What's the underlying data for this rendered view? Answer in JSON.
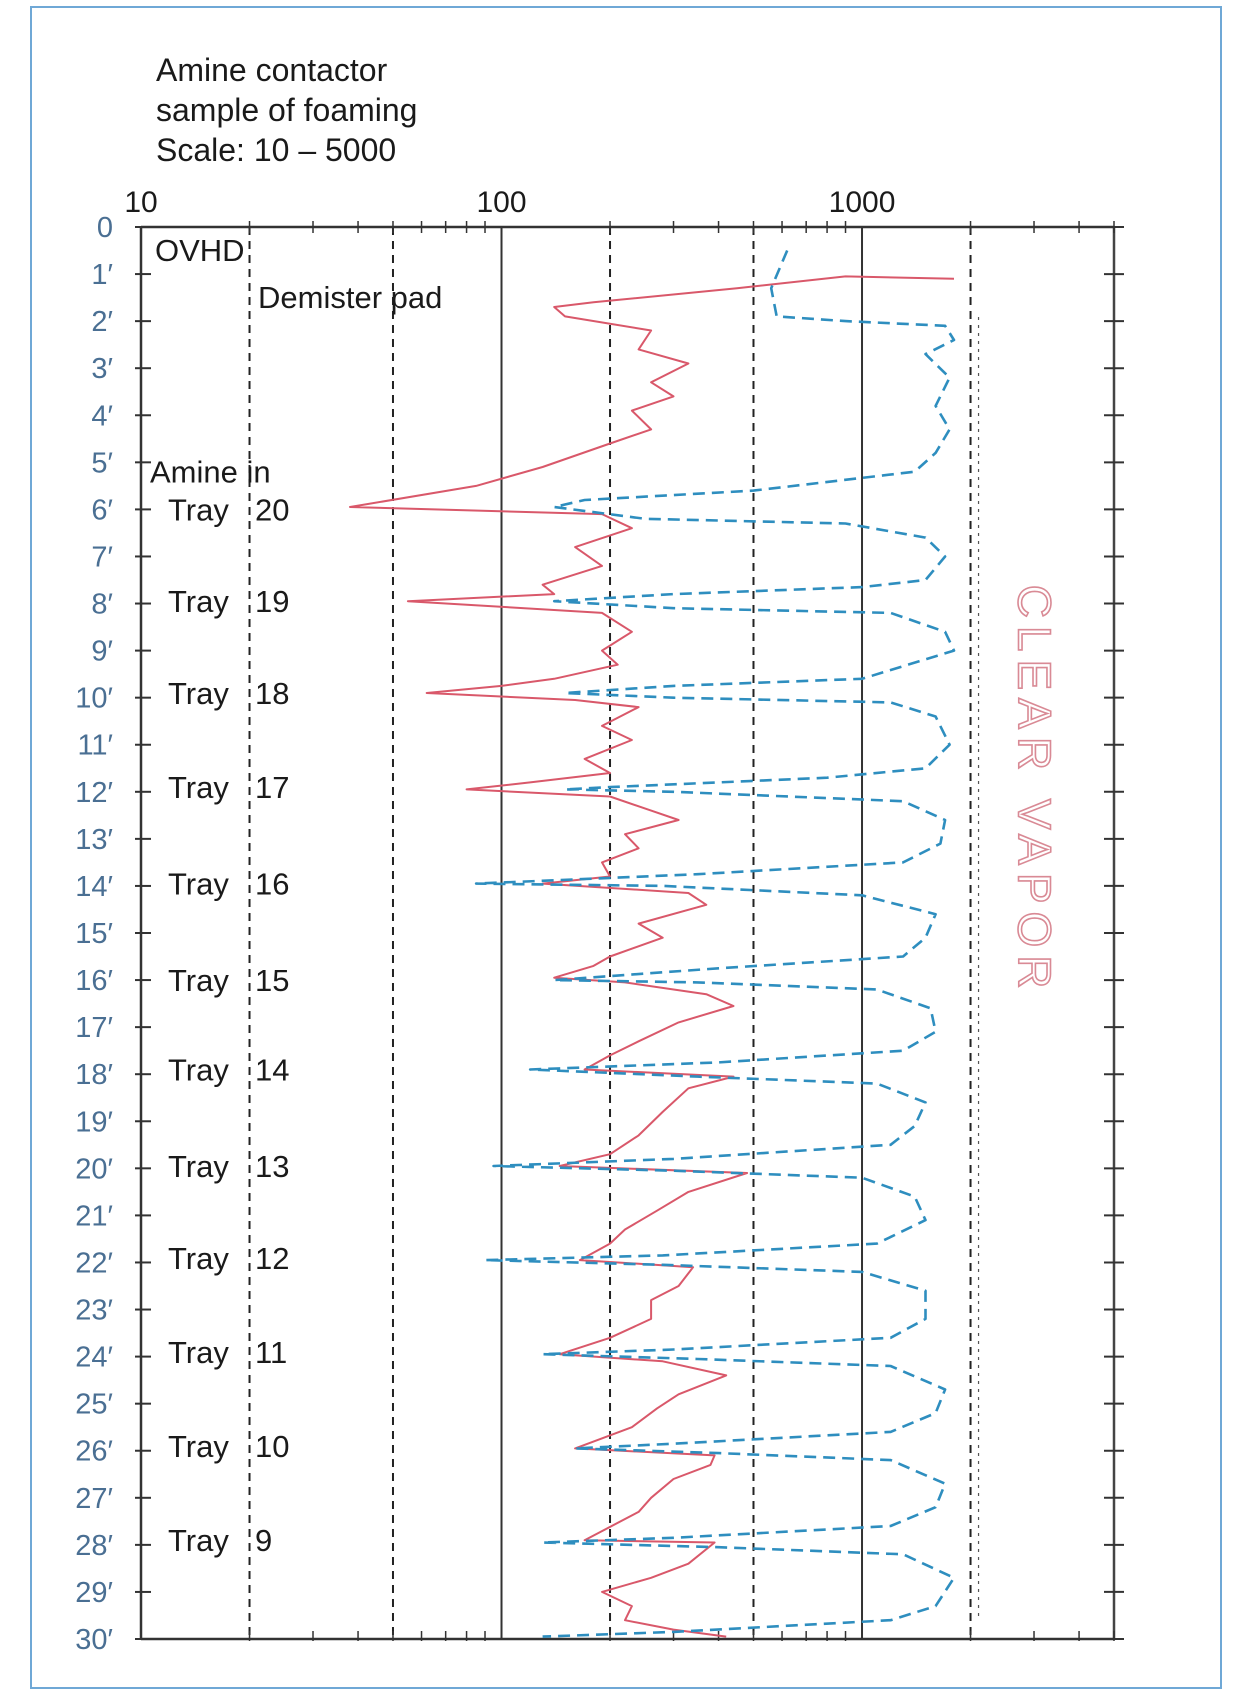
{
  "title": {
    "line1": "Amine contactor",
    "line2": "sample of foaming",
    "line3": "Scale: 10 – 5000"
  },
  "chart_data": {
    "type": "line",
    "title": "Amine contactor sample of foaming",
    "subtitle": "Scale: 10 – 5000",
    "x_scale": "log",
    "xlim": [
      10,
      5000
    ],
    "x_ticks": [
      "10",
      "100",
      "1000"
    ],
    "y_ticks": [
      "0",
      "1′",
      "2′",
      "3′",
      "4′",
      "5′",
      "6′",
      "7′",
      "8′",
      "9′",
      "10′",
      "11′",
      "12′",
      "13′",
      "14′",
      "15′",
      "16′",
      "17′",
      "18′",
      "19′",
      "20′",
      "21′",
      "22′",
      "23′",
      "24′",
      "25′",
      "26′",
      "27′",
      "28′",
      "29′",
      "30′"
    ],
    "ylim": [
      0,
      30
    ],
    "y_inverted": true,
    "grid": true,
    "annotations": [
      {
        "text": "OVHD",
        "y": 0.4
      },
      {
        "text": "Demister pad",
        "y": 1.4
      },
      {
        "text": "Amine in",
        "y": 5.2
      },
      {
        "text": "Tray",
        "num": "20",
        "y": 6.0
      },
      {
        "text": "Tray",
        "num": "19",
        "y": 7.95
      },
      {
        "text": "Tray",
        "num": "18",
        "y": 9.9
      },
      {
        "text": "Tray",
        "num": "17",
        "y": 11.9
      },
      {
        "text": "Tray",
        "num": "16",
        "y": 13.95
      },
      {
        "text": "Tray",
        "num": "15",
        "y": 16.0
      },
      {
        "text": "Tray",
        "num": "14",
        "y": 17.9
      },
      {
        "text": "Tray",
        "num": "13",
        "y": 19.95
      },
      {
        "text": "Tray",
        "num": "12",
        "y": 21.9
      },
      {
        "text": "Tray",
        "num": "11",
        "y": 23.9
      },
      {
        "text": "Tray",
        "num": "10",
        "y": 25.9
      },
      {
        "text": "Tray",
        "num": "9",
        "y": 27.9
      }
    ],
    "watermark": "CLEAR VAPOR",
    "series": [
      {
        "style": "solid",
        "color": "#d9586a",
        "points": [
          [
            1800,
            1.1
          ],
          [
            900,
            1.05
          ],
          [
            450,
            1.3
          ],
          [
            180,
            1.6
          ],
          [
            140,
            1.7
          ],
          [
            150,
            1.9
          ],
          [
            260,
            2.2
          ],
          [
            240,
            2.6
          ],
          [
            330,
            2.9
          ],
          [
            260,
            3.3
          ],
          [
            300,
            3.6
          ],
          [
            230,
            3.9
          ],
          [
            260,
            4.3
          ],
          [
            200,
            4.6
          ],
          [
            130,
            5.1
          ],
          [
            85,
            5.5
          ],
          [
            38,
            5.95
          ],
          [
            190,
            6.1
          ],
          [
            230,
            6.4
          ],
          [
            160,
            6.8
          ],
          [
            190,
            7.2
          ],
          [
            130,
            7.6
          ],
          [
            140,
            7.8
          ],
          [
            55,
            7.95
          ],
          [
            190,
            8.2
          ],
          [
            230,
            8.6
          ],
          [
            190,
            9.0
          ],
          [
            210,
            9.3
          ],
          [
            140,
            9.6
          ],
          [
            100,
            9.75
          ],
          [
            62,
            9.9
          ],
          [
            160,
            10.05
          ],
          [
            240,
            10.2
          ],
          [
            190,
            10.6
          ],
          [
            230,
            10.9
          ],
          [
            170,
            11.3
          ],
          [
            200,
            11.6
          ],
          [
            120,
            11.8
          ],
          [
            80,
            11.95
          ],
          [
            200,
            12.1
          ],
          [
            260,
            12.4
          ],
          [
            310,
            12.6
          ],
          [
            220,
            12.9
          ],
          [
            240,
            13.2
          ],
          [
            190,
            13.5
          ],
          [
            200,
            13.8
          ],
          [
            130,
            13.95
          ],
          [
            330,
            14.15
          ],
          [
            370,
            14.4
          ],
          [
            240,
            14.8
          ],
          [
            280,
            15.1
          ],
          [
            200,
            15.5
          ],
          [
            180,
            15.7
          ],
          [
            140,
            15.95
          ],
          [
            220,
            16.05
          ],
          [
            370,
            16.3
          ],
          [
            440,
            16.55
          ],
          [
            310,
            16.9
          ],
          [
            240,
            17.3
          ],
          [
            200,
            17.6
          ],
          [
            170,
            17.9
          ],
          [
            440,
            18.05
          ],
          [
            330,
            18.3
          ],
          [
            280,
            18.8
          ],
          [
            240,
            19.3
          ],
          [
            200,
            19.7
          ],
          [
            145,
            19.95
          ],
          [
            480,
            20.1
          ],
          [
            330,
            20.5
          ],
          [
            270,
            20.9
          ],
          [
            220,
            21.3
          ],
          [
            200,
            21.6
          ],
          [
            165,
            21.95
          ],
          [
            340,
            22.1
          ],
          [
            310,
            22.5
          ],
          [
            260,
            22.8
          ],
          [
            260,
            23.2
          ],
          [
            200,
            23.6
          ],
          [
            145,
            23.95
          ],
          [
            280,
            24.1
          ],
          [
            420,
            24.4
          ],
          [
            310,
            24.8
          ],
          [
            270,
            25.1
          ],
          [
            230,
            25.5
          ],
          [
            160,
            25.95
          ],
          [
            390,
            26.1
          ],
          [
            380,
            26.3
          ],
          [
            300,
            26.6
          ],
          [
            260,
            27.0
          ],
          [
            240,
            27.3
          ],
          [
            170,
            27.9
          ],
          [
            390,
            27.95
          ],
          [
            330,
            28.4
          ],
          [
            260,
            28.7
          ],
          [
            190,
            29.0
          ],
          [
            230,
            29.3
          ],
          [
            220,
            29.6
          ],
          [
            300,
            29.8
          ],
          [
            420,
            29.95
          ]
        ]
      },
      {
        "style": "dashed",
        "color": "#2e8ebf",
        "points": [
          [
            620,
            0.5
          ],
          [
            560,
            1.3
          ],
          [
            580,
            1.9
          ],
          [
            900,
            2.0
          ],
          [
            1700,
            2.1
          ],
          [
            1800,
            2.4
          ],
          [
            1500,
            2.7
          ],
          [
            1750,
            3.2
          ],
          [
            1600,
            3.8
          ],
          [
            1750,
            4.3
          ],
          [
            1600,
            4.8
          ],
          [
            1400,
            5.2
          ],
          [
            500,
            5.6
          ],
          [
            170,
            5.8
          ],
          [
            140,
            5.95
          ],
          [
            250,
            6.2
          ],
          [
            900,
            6.3
          ],
          [
            1500,
            6.6
          ],
          [
            1700,
            7.0
          ],
          [
            1500,
            7.5
          ],
          [
            1000,
            7.65
          ],
          [
            300,
            7.8
          ],
          [
            140,
            7.95
          ],
          [
            300,
            8.1
          ],
          [
            1200,
            8.2
          ],
          [
            1700,
            8.6
          ],
          [
            1800,
            9.0
          ],
          [
            1000,
            9.6
          ],
          [
            300,
            9.75
          ],
          [
            150,
            9.9
          ],
          [
            300,
            10.0
          ],
          [
            1200,
            10.1
          ],
          [
            1600,
            10.4
          ],
          [
            1750,
            11.0
          ],
          [
            1500,
            11.5
          ],
          [
            800,
            11.7
          ],
          [
            200,
            11.9
          ],
          [
            150,
            11.95
          ],
          [
            300,
            12.0
          ],
          [
            1300,
            12.2
          ],
          [
            1700,
            12.6
          ],
          [
            1650,
            13.1
          ],
          [
            1300,
            13.5
          ],
          [
            350,
            13.75
          ],
          [
            85,
            13.95
          ],
          [
            280,
            14.0
          ],
          [
            1000,
            14.2
          ],
          [
            1600,
            14.6
          ],
          [
            1500,
            15.1
          ],
          [
            1300,
            15.5
          ],
          [
            400,
            15.75
          ],
          [
            140,
            16.0
          ],
          [
            350,
            16.05
          ],
          [
            1100,
            16.2
          ],
          [
            1550,
            16.6
          ],
          [
            1600,
            17.1
          ],
          [
            1300,
            17.5
          ],
          [
            400,
            17.75
          ],
          [
            120,
            17.9
          ],
          [
            350,
            18.05
          ],
          [
            1100,
            18.2
          ],
          [
            1500,
            18.6
          ],
          [
            1400,
            19.1
          ],
          [
            1200,
            19.5
          ],
          [
            300,
            19.8
          ],
          [
            95,
            19.95
          ],
          [
            300,
            20.05
          ],
          [
            1000,
            20.2
          ],
          [
            1400,
            20.6
          ],
          [
            1500,
            21.1
          ],
          [
            1100,
            21.6
          ],
          [
            280,
            21.85
          ],
          [
            90,
            21.95
          ],
          [
            280,
            22.05
          ],
          [
            1000,
            22.2
          ],
          [
            1500,
            22.6
          ],
          [
            1500,
            23.2
          ],
          [
            1200,
            23.6
          ],
          [
            300,
            23.85
          ],
          [
            130,
            23.95
          ],
          [
            350,
            24.05
          ],
          [
            1200,
            24.2
          ],
          [
            1700,
            24.7
          ],
          [
            1600,
            25.2
          ],
          [
            1200,
            25.6
          ],
          [
            300,
            25.85
          ],
          [
            160,
            25.95
          ],
          [
            400,
            26.05
          ],
          [
            1200,
            26.2
          ],
          [
            1700,
            26.7
          ],
          [
            1600,
            27.2
          ],
          [
            1200,
            27.6
          ],
          [
            300,
            27.85
          ],
          [
            130,
            27.95
          ],
          [
            400,
            28.05
          ],
          [
            1300,
            28.2
          ],
          [
            1800,
            28.7
          ],
          [
            1600,
            29.3
          ],
          [
            1200,
            29.6
          ],
          [
            300,
            29.85
          ],
          [
            130,
            29.95
          ]
        ]
      }
    ]
  }
}
